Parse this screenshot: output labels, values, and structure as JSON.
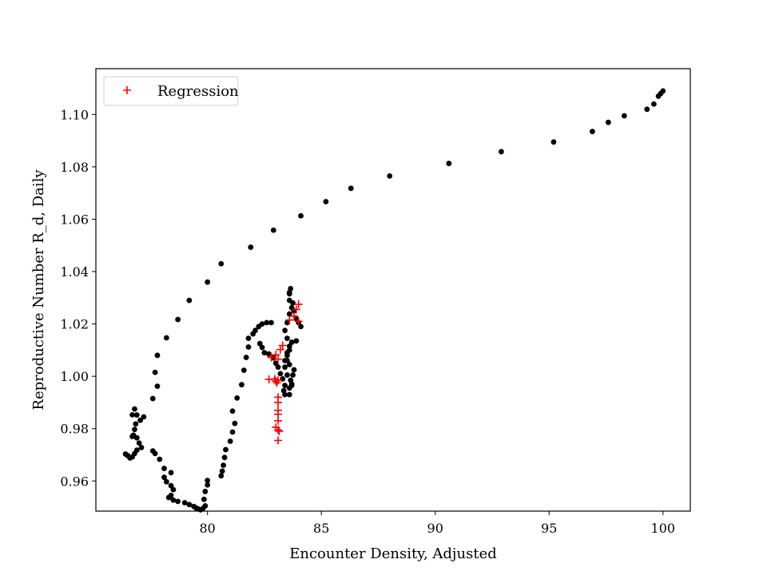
{
  "chart_data": {
    "type": "scatter",
    "title": "",
    "xlabel": "Encounter Density, Adjusted",
    "ylabel": "Reproductive Number R_d, Daily",
    "xlim": [
      75.1,
      101.2
    ],
    "ylim": [
      0.9485,
      1.1175
    ],
    "xticks": [
      80,
      85,
      90,
      95,
      100
    ],
    "xtick_labels": [
      "80",
      "85",
      "90",
      "95",
      "100"
    ],
    "yticks": [
      0.96,
      0.98,
      1.0,
      1.02,
      1.04,
      1.06,
      1.08,
      1.1
    ],
    "ytick_labels": [
      "0.96",
      "0.98",
      "1.00",
      "1.02",
      "1.04",
      "1.06",
      "1.08",
      "1.10"
    ],
    "grid": false,
    "legend_position": "top-left",
    "series": [
      {
        "marker": "dot",
        "color": "#000000",
        "points": [
          [
            100.0,
            1.109
          ],
          [
            99.9,
            1.108
          ],
          [
            99.8,
            1.107
          ],
          [
            99.6,
            1.104
          ],
          [
            99.3,
            1.102
          ],
          [
            98.3,
            1.0995
          ],
          [
            97.6,
            1.097
          ],
          [
            96.9,
            1.0935
          ],
          [
            95.2,
            1.0895
          ],
          [
            92.9,
            1.0858
          ],
          [
            90.6,
            1.0813
          ],
          [
            88.0,
            1.0765
          ],
          [
            86.3,
            1.0718
          ],
          [
            85.2,
            1.0667
          ],
          [
            84.1,
            1.0613
          ],
          [
            82.9,
            1.0558
          ],
          [
            81.9,
            1.0493
          ],
          [
            80.6,
            1.043
          ],
          [
            80.0,
            1.036
          ],
          [
            79.2,
            1.029
          ],
          [
            78.7,
            1.0217
          ],
          [
            78.2,
            1.0147
          ],
          [
            77.8,
            1.008
          ],
          [
            77.7,
            1.0015
          ],
          [
            77.8,
            0.9962
          ],
          [
            77.6,
            0.9915
          ],
          [
            77.2,
            0.9845
          ],
          [
            77.05,
            0.9832
          ],
          [
            76.9,
            0.9852
          ],
          [
            76.8,
            0.9875
          ],
          [
            76.7,
            0.9853
          ],
          [
            76.85,
            0.9818
          ],
          [
            76.8,
            0.9797
          ],
          [
            76.75,
            0.9775
          ],
          [
            76.7,
            0.977
          ],
          [
            76.9,
            0.9765
          ],
          [
            77.0,
            0.9745
          ],
          [
            77.1,
            0.9728
          ],
          [
            76.9,
            0.9718
          ],
          [
            76.8,
            0.9705
          ],
          [
            76.7,
            0.9692
          ],
          [
            76.6,
            0.9688
          ],
          [
            76.5,
            0.9697
          ],
          [
            76.4,
            0.9703
          ],
          [
            77.6,
            0.9715
          ],
          [
            77.7,
            0.9705
          ],
          [
            77.9,
            0.9683
          ],
          [
            78.1,
            0.9648
          ],
          [
            78.4,
            0.9632
          ],
          [
            78.1,
            0.9614
          ],
          [
            78.2,
            0.9597
          ],
          [
            78.4,
            0.9582
          ],
          [
            78.5,
            0.9567
          ],
          [
            78.4,
            0.9545
          ],
          [
            78.3,
            0.9537
          ],
          [
            78.5,
            0.9527
          ],
          [
            78.7,
            0.9522
          ],
          [
            79.0,
            0.9517
          ],
          [
            79.2,
            0.951
          ],
          [
            79.4,
            0.9503
          ],
          [
            79.5,
            0.9497
          ],
          [
            79.6,
            0.9493
          ],
          [
            79.7,
            0.949
          ],
          [
            79.8,
            0.9495
          ],
          [
            79.9,
            0.9505
          ],
          [
            79.85,
            0.953
          ],
          [
            79.9,
            0.956
          ],
          [
            80.0,
            0.9585
          ],
          [
            80.0,
            0.9602
          ],
          [
            80.6,
            0.962
          ],
          [
            80.65,
            0.9638
          ],
          [
            80.7,
            0.966
          ],
          [
            80.75,
            0.969
          ],
          [
            80.8,
            0.972
          ],
          [
            81.0,
            0.9752
          ],
          [
            81.1,
            0.9787
          ],
          [
            81.2,
            0.982
          ],
          [
            81.1,
            0.9867
          ],
          [
            81.3,
            0.9917
          ],
          [
            81.5,
            0.9968
          ],
          [
            81.6,
            1.0023
          ],
          [
            81.7,
            1.0072
          ],
          [
            81.8,
            1.0112
          ],
          [
            81.8,
            1.0145
          ],
          [
            82.0,
            1.0162
          ],
          [
            82.1,
            1.0175
          ],
          [
            82.25,
            1.019
          ],
          [
            82.4,
            1.02
          ],
          [
            82.6,
            1.0205
          ],
          [
            82.8,
            1.0205
          ],
          [
            82.3,
            1.0125
          ],
          [
            82.4,
            1.011
          ],
          [
            82.5,
            1.009
          ],
          [
            82.7,
            1.0085
          ],
          [
            82.9,
            1.007
          ],
          [
            83.0,
            1.005
          ],
          [
            83.1,
            1.0035
          ],
          [
            83.2,
            1.001
          ],
          [
            83.3,
            0.999
          ],
          [
            83.4,
            0.9965
          ],
          [
            83.35,
            0.9945
          ],
          [
            83.4,
            0.993
          ],
          [
            83.6,
            0.993
          ],
          [
            83.7,
            0.9965
          ],
          [
            83.5,
            1.0005
          ],
          [
            83.4,
            1.0035
          ],
          [
            83.5,
            1.006
          ],
          [
            83.5,
            1.009
          ],
          [
            83.6,
            1.0115
          ],
          [
            83.5,
            1.0145
          ],
          [
            83.4,
            1.0175
          ],
          [
            83.5,
            1.0205
          ],
          [
            83.6,
            1.0238
          ],
          [
            83.7,
            1.0262
          ],
          [
            83.6,
            1.029
          ],
          [
            83.6,
            1.0315
          ],
          [
            83.65,
            1.0335
          ],
          [
            83.6,
            1.032
          ],
          [
            83.75,
            1.028
          ],
          [
            83.8,
            1.025
          ],
          [
            83.9,
            1.022
          ],
          [
            84.0,
            1.0205
          ],
          [
            84.1,
            1.019
          ],
          [
            83.9,
            1.0135
          ],
          [
            83.7,
            1.013
          ],
          [
            83.6,
            1.01
          ],
          [
            83.5,
            1.008
          ],
          [
            83.4,
            1.006
          ],
          [
            83.6,
            1.0045
          ],
          [
            83.8,
            1.0025
          ],
          [
            83.75,
            1.0005
          ],
          [
            83.65,
            0.9985
          ],
          [
            83.7,
            0.997
          ],
          [
            83.6,
            0.9955
          ]
        ]
      },
      {
        "name": "Regression",
        "marker": "plus",
        "color": "#ff0000",
        "points": [
          [
            84.0,
            1.0275
          ],
          [
            83.9,
            1.0255
          ],
          [
            83.8,
            1.023
          ],
          [
            84.0,
            1.021
          ],
          [
            83.6,
            1.0215
          ],
          [
            83.3,
            1.0118
          ],
          [
            83.2,
            1.0102
          ],
          [
            83.0,
            1.0082
          ],
          [
            83.1,
            1.0065
          ],
          [
            82.8,
            1.0072
          ],
          [
            82.7,
            0.9988
          ],
          [
            82.95,
            0.999
          ],
          [
            83.0,
            0.9982
          ],
          [
            83.05,
            0.9975
          ],
          [
            83.1,
            0.9985
          ],
          [
            83.1,
            0.992
          ],
          [
            83.1,
            0.99
          ],
          [
            83.1,
            0.987
          ],
          [
            83.1,
            0.9855
          ],
          [
            83.1,
            0.983
          ],
          [
            83.0,
            0.9805
          ],
          [
            83.1,
            0.9795
          ],
          [
            83.15,
            0.979
          ],
          [
            83.1,
            0.9755
          ]
        ]
      }
    ]
  }
}
